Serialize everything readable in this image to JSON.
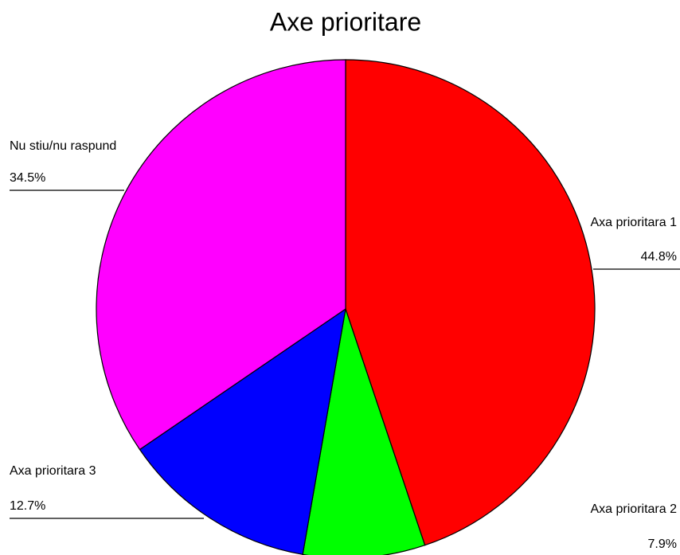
{
  "chart_data": {
    "type": "pie",
    "title": "Axe prioritare",
    "categories": [
      "Axa prioritara 1",
      "Axa prioritara 2",
      "Axa prioritara 3",
      "Nu stiu/nu raspund"
    ],
    "values": [
      44.8,
      7.9,
      12.7,
      34.5
    ],
    "value_labels": [
      "44.8%",
      "7.9%",
      "12.7%",
      "34.5%"
    ],
    "colors": [
      "#ff0000",
      "#00ff00",
      "#0000ff",
      "#ff00ff"
    ]
  }
}
